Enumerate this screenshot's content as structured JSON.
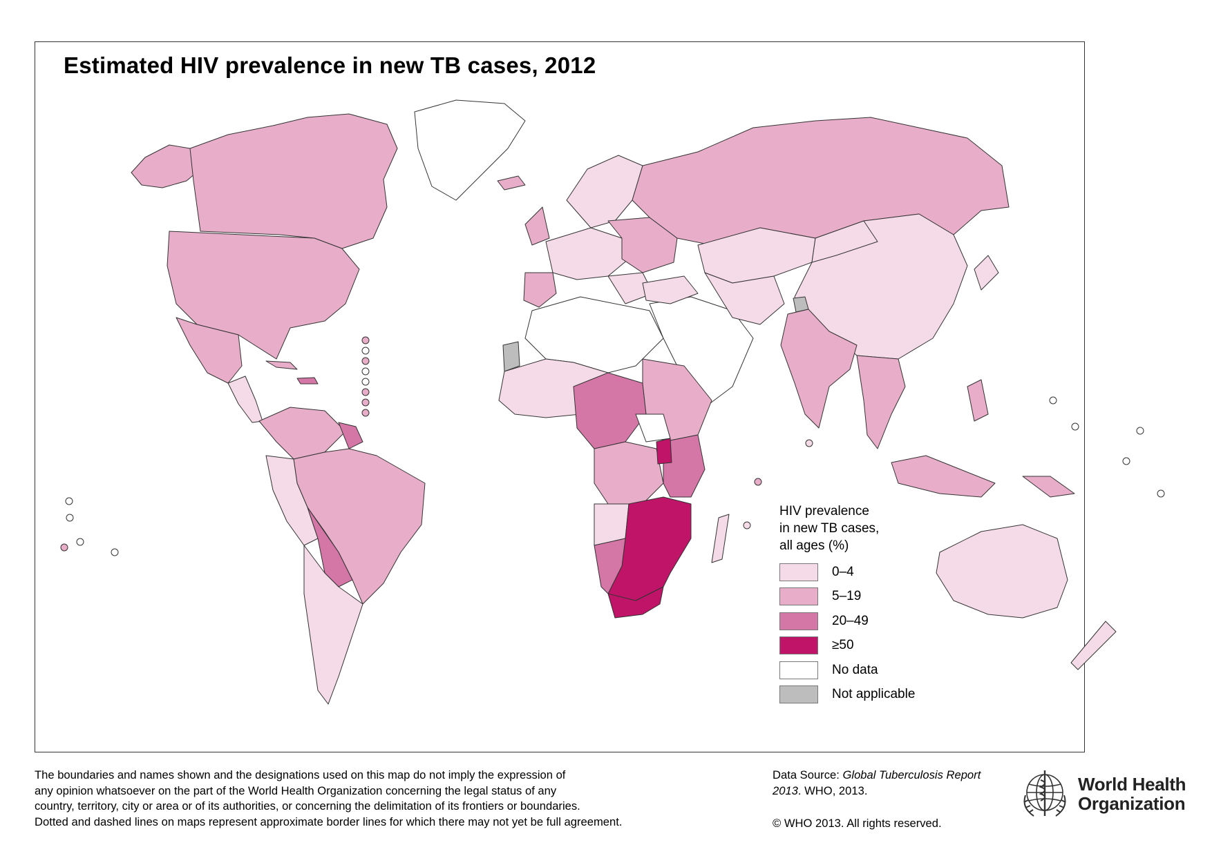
{
  "title": "Estimated HIV prevalence in new TB cases, 2012",
  "legend": {
    "title_lines": [
      "HIV prevalence",
      "in new TB cases,",
      "all ages (%)"
    ],
    "items": [
      {
        "label": "0–4",
        "color": "#f5dbe7"
      },
      {
        "label": "5–19",
        "color": "#e7adc9"
      },
      {
        "label": "20–49",
        "color": "#d477a7"
      },
      {
        "label": "≥50",
        "color": "#bf1467"
      },
      {
        "label": "No data",
        "color": "#ffffff"
      },
      {
        "label": "Not applicable",
        "color": "#bdbdbd"
      }
    ]
  },
  "disclaimer_lines": [
    "The boundaries and names shown and the designations used on this map do not imply the expression of",
    "any opinion whatsoever on the part of the World Health Organization concerning the legal status of any",
    "country, territory, city or area or of its authorities, or concerning the delimitation of its frontiers or boundaries.",
    "Dotted and dashed lines on maps represent approximate border lines for which there may not yet be full agreement."
  ],
  "source": {
    "prefix": "Data Source: ",
    "italic": "Global Tuberculosis Report 2013",
    "suffix": ". WHO, 2013."
  },
  "copyright": "© WHO 2013. All rights reserved.",
  "organization": {
    "line1": "World Health",
    "line2": "Organization",
    "logo_icon": "who-emblem-icon"
  },
  "map_colors": {
    "0-4": "#f5dbe7",
    "5-19": "#e7adc9",
    "20-49": "#d477a7",
    "50+": "#bf1467",
    "no_data": "#ffffff",
    "not_applicable": "#bdbdbd",
    "border": "#333333"
  }
}
